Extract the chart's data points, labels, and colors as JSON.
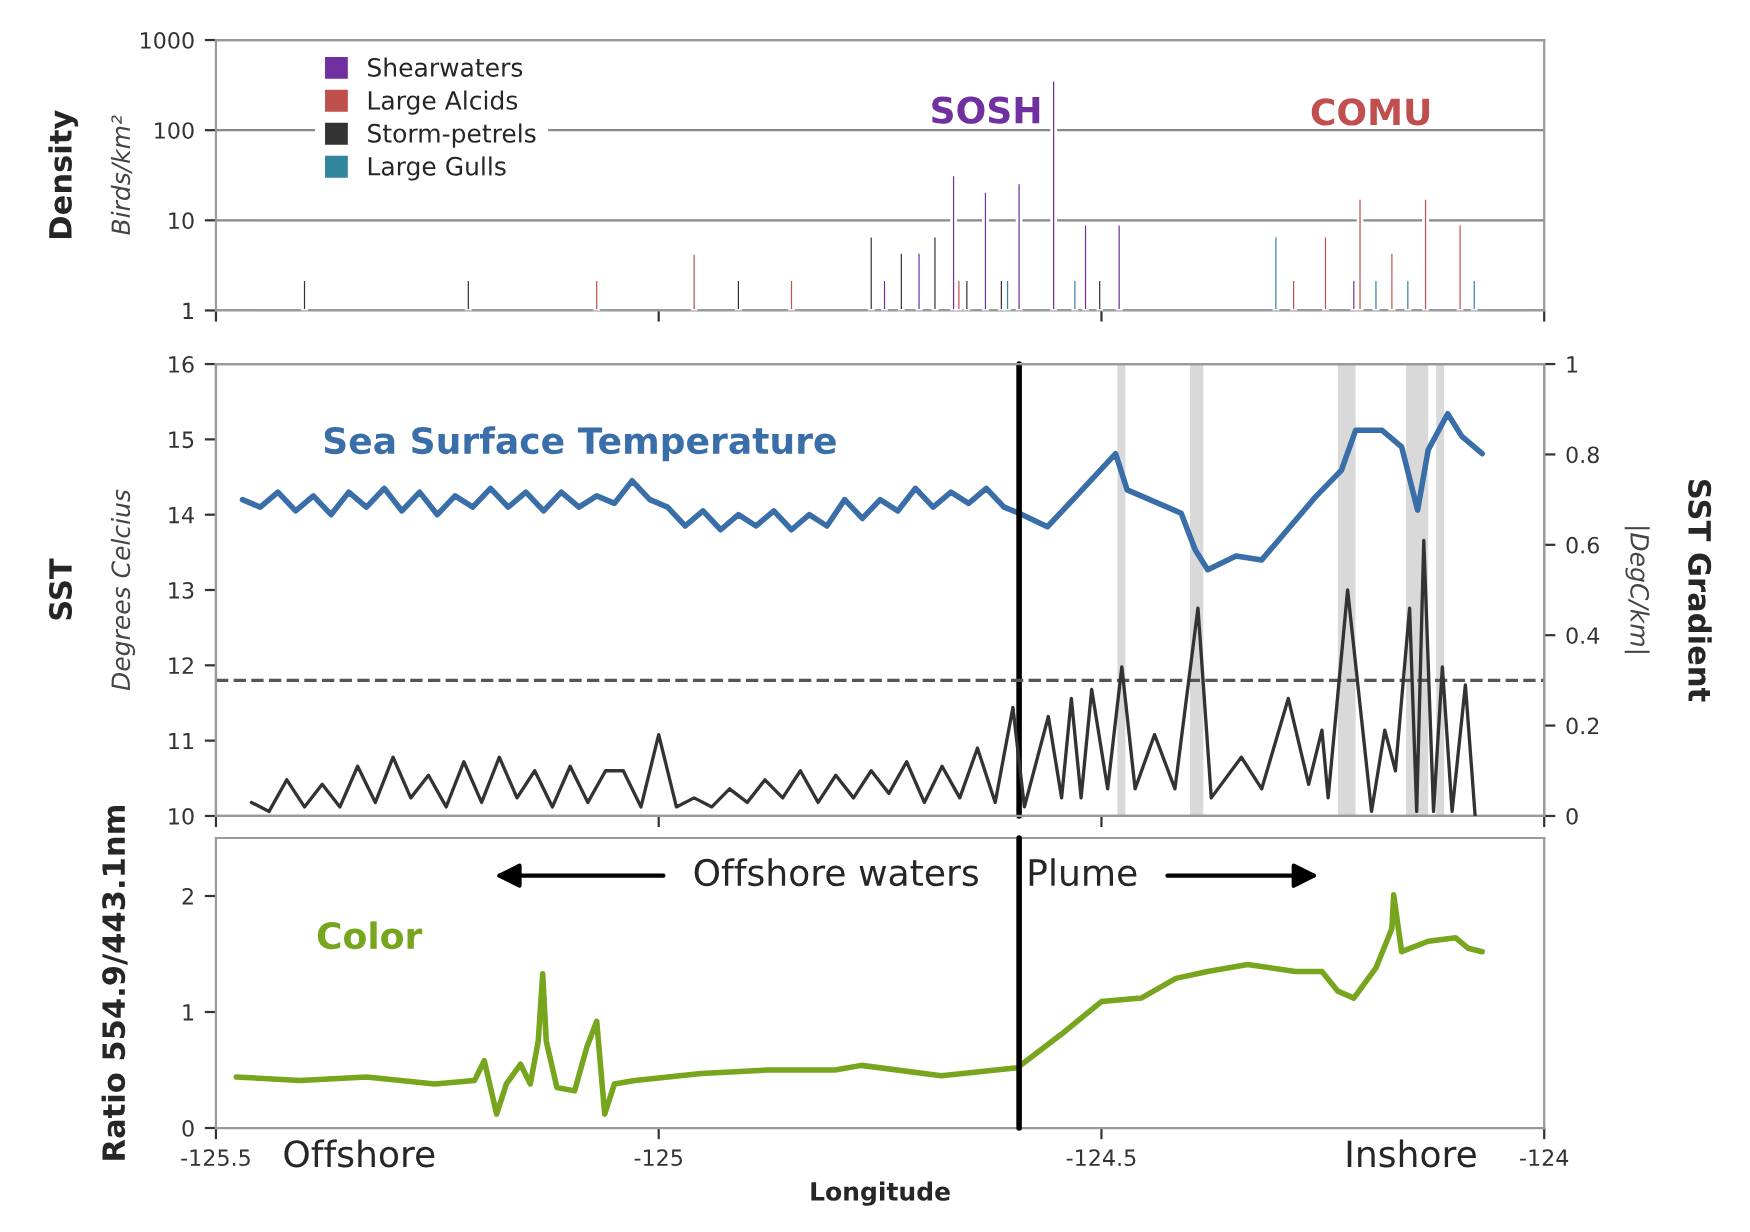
{
  "chart_data": [
    {
      "type": "bar",
      "ylabel": "Density\nBirds/km²",
      "log": "y",
      "xlim": [
        -125.5,
        -124
      ],
      "xticks": [
        {
          "value": -125.5,
          "label": null
        },
        {
          "value": -125,
          "label": null
        },
        {
          "value": -124.5,
          "label": null
        },
        {
          "value": -124,
          "label": null
        }
      ],
      "ylim": [
        1,
        1000
      ],
      "yticks": [
        1,
        10,
        100,
        1000
      ],
      "tick_labels": "y",
      "grid": "y",
      "legend": "top left",
      "series": [
        {
          "name": "Shearwaters",
          "color": "#7030a0",
          "x": [
            -124.745,
            -124.706,
            -124.667,
            -124.631,
            -124.593,
            -124.554,
            -124.518,
            -124.48,
            -124.215
          ],
          "values": [
            2.2,
            4.4,
            32,
            21,
            26,
            360,
            9.1,
            9.1,
            2.2
          ]
        },
        {
          "name": "Large Alcids",
          "color": "#c0504d",
          "x": [
            -125.07,
            -124.96,
            -124.85,
            -124.661,
            -124.283,
            -124.247,
            -124.208,
            -124.172,
            -124.134,
            -124.095
          ],
          "values": [
            2.2,
            4.3,
            2.2,
            2.2,
            2.2,
            6.7,
            17.5,
            4.4,
            17.5,
            9.1
          ]
        },
        {
          "name": "Storm-petrels",
          "color": "#333333",
          "x": [
            -125.4,
            -125.215,
            -124.91,
            -124.76,
            -124.726,
            -124.688,
            -124.652,
            -124.613,
            -124.502
          ],
          "values": [
            2.2,
            2.2,
            2.2,
            6.7,
            4.4,
            6.7,
            2.2,
            2.2,
            2.2
          ]
        },
        {
          "name": "Large Gulls",
          "color": "#31859c",
          "x": [
            -124.606,
            -124.53,
            -124.303,
            -124.19,
            -124.154,
            -124.079
          ],
          "values": [
            2.2,
            2.2,
            6.7,
            2.2,
            2.2,
            2.2
          ]
        }
      ],
      "annotations": [
        {
          "text": "SOSH",
          "x": -124.554,
          "y": 360
        },
        {
          "text": "COMU",
          "x": -124.208,
          "y": 17.5
        }
      ]
    },
    {
      "type": "line",
      "ylabel": "SST\nDegrees Celcius",
      "y2label": "SST Gradient\n|DegC/km|",
      "xlim": [
        -125.5,
        -124
      ],
      "xticks": [
        {
          "value": -125.5,
          "label": null
        },
        {
          "value": -125,
          "label": null
        },
        {
          "value": -124.5,
          "label": null
        },
        {
          "value": -124,
          "label": null
        }
      ],
      "ylim": [
        10,
        16
      ],
      "yticks": [
        10,
        11,
        12,
        13,
        14,
        15,
        16
      ],
      "y2lim": [
        0,
        1
      ],
      "y2ticks": [
        0,
        0.2,
        0.4,
        0.6,
        0.8,
        1
      ],
      "tick_labels": "y",
      "grid": false,
      "legend": false,
      "series": [
        {
          "name": "Sea Surface Temperature",
          "color": "#3a6ea8",
          "x": [
            -125.47,
            -125.45,
            -125.43,
            -125.41,
            -125.39,
            -125.37,
            -125.35,
            -125.33,
            -125.31,
            -125.29,
            -125.27,
            -125.25,
            -125.23,
            -125.21,
            -125.19,
            -125.17,
            -125.15,
            -125.13,
            -125.11,
            -125.09,
            -125.07,
            -125.05,
            -125.03,
            -125.01,
            -124.99,
            -124.97,
            -124.95,
            -124.93,
            -124.91,
            -124.89,
            -124.87,
            -124.85,
            -124.83,
            -124.81,
            -124.79,
            -124.77,
            -124.75,
            -124.73,
            -124.71,
            -124.69,
            -124.67,
            -124.65,
            -124.63,
            -124.61,
            -124.593,
            -124.561,
            -124.529,
            -124.484,
            -124.471,
            -124.41,
            -124.394,
            -124.38,
            -124.348,
            -124.319,
            -124.29,
            -124.258,
            -124.229,
            -124.213,
            -124.183,
            -124.161,
            -124.143,
            -124.131,
            -124.109,
            -124.093,
            -124.07
          ],
          "values": [
            14.2,
            14.1,
            14.3,
            14.05,
            14.25,
            14.0,
            14.3,
            14.1,
            14.35,
            14.05,
            14.3,
            14.0,
            14.25,
            14.1,
            14.35,
            14.1,
            14.3,
            14.05,
            14.3,
            14.1,
            14.25,
            14.15,
            14.45,
            14.2,
            14.1,
            13.85,
            14.05,
            13.8,
            14.0,
            13.85,
            14.05,
            13.8,
            14.0,
            13.85,
            14.2,
            13.95,
            14.2,
            14.05,
            14.35,
            14.1,
            14.3,
            14.15,
            14.35,
            14.1,
            14.02,
            13.84,
            14.24,
            14.81,
            14.33,
            14.02,
            13.53,
            13.27,
            13.45,
            13.4,
            13.8,
            14.24,
            14.59,
            15.12,
            15.12,
            14.9,
            14.06,
            14.86,
            15.34,
            15.04,
            14.81
          ]
        },
        {
          "color": "#333333",
          "axis": "y2",
          "x": [
            -125.46,
            -125.44,
            -125.42,
            -125.4,
            -125.38,
            -125.36,
            -125.34,
            -125.32,
            -125.3,
            -125.28,
            -125.26,
            -125.24,
            -125.22,
            -125.2,
            -125.18,
            -125.16,
            -125.14,
            -125.12,
            -125.1,
            -125.08,
            -125.06,
            -125.04,
            -125.02,
            -125.0,
            -124.98,
            -124.96,
            -124.94,
            -124.92,
            -124.9,
            -124.88,
            -124.86,
            -124.84,
            -124.82,
            -124.8,
            -124.78,
            -124.76,
            -124.74,
            -124.72,
            -124.7,
            -124.68,
            -124.66,
            -124.64,
            -124.62,
            -124.6,
            -124.587,
            -124.56,
            -124.545,
            -124.534,
            -124.523,
            -124.511,
            -124.493,
            -124.477,
            -124.462,
            -124.44,
            -124.417,
            -124.391,
            -124.376,
            -124.342,
            -124.319,
            -124.289,
            -124.266,
            -124.251,
            -124.244,
            -124.222,
            -124.195,
            -124.18,
            -124.168,
            -124.152,
            -124.144,
            -124.136,
            -124.125,
            -124.115,
            -124.104,
            -124.089,
            -124.078
          ],
          "values": [
            0.03,
            0.01,
            0.08,
            0.02,
            0.07,
            0.02,
            0.11,
            0.03,
            0.13,
            0.04,
            0.09,
            0.02,
            0.12,
            0.03,
            0.13,
            0.04,
            0.1,
            0.02,
            0.11,
            0.03,
            0.1,
            0.1,
            0.02,
            0.18,
            0.02,
            0.04,
            0.02,
            0.06,
            0.03,
            0.08,
            0.04,
            0.1,
            0.03,
            0.09,
            0.04,
            0.1,
            0.05,
            0.12,
            0.03,
            0.11,
            0.04,
            0.15,
            0.03,
            0.24,
            0.02,
            0.22,
            0.04,
            0.26,
            0.04,
            0.28,
            0.06,
            0.33,
            0.06,
            0.18,
            0.06,
            0.46,
            0.04,
            0.13,
            0.06,
            0.26,
            0.07,
            0.19,
            0.04,
            0.5,
            0.01,
            0.19,
            0.1,
            0.46,
            0.01,
            0.61,
            0.01,
            0.33,
            0.01,
            0.29,
            0.0
          ]
        }
      ],
      "ref_lines": [
        {
          "axis": "x",
          "value": -124.593,
          "color": "#000000",
          "line_style": "solid"
        },
        {
          "axis": "y2",
          "value": 0.3,
          "color": "#555555",
          "line_style": "dashed"
        }
      ],
      "bands": [
        {
          "axis": "x",
          "from": -124.482,
          "to": -124.473,
          "color": "#d9d9d9"
        },
        {
          "axis": "x",
          "from": -124.4,
          "to": -124.385,
          "color": "#d9d9d9"
        },
        {
          "axis": "x",
          "from": -124.233,
          "to": -124.213,
          "color": "#d9d9d9"
        },
        {
          "axis": "x",
          "from": -124.156,
          "to": -124.131,
          "color": "#d9d9d9"
        },
        {
          "axis": "x",
          "from": -124.122,
          "to": -124.113,
          "color": "#d9d9d9"
        }
      ]
    },
    {
      "type": "line",
      "ylabel": "Ratio 554.9/443.1nm",
      "xlabel": "Longitude",
      "xlim": [
        -125.5,
        -124
      ],
      "xticks": [
        -125.5,
        -125,
        -124.5,
        -124
      ],
      "ylim": [
        0,
        2.5
      ],
      "yticks": [
        0,
        1,
        2
      ],
      "grid": false,
      "legend": false,
      "series": [
        {
          "name": "Color",
          "color": "#77a51e",
          "x": [
            -125.477,
            -125.405,
            -125.33,
            -125.253,
            -125.208,
            -125.197,
            -125.183,
            -125.172,
            -125.156,
            -125.145,
            -125.136,
            -125.131,
            -125.127,
            -125.115,
            -125.095,
            -125.081,
            -125.07,
            -125.061,
            -125.05,
            -125.027,
            -124.952,
            -124.878,
            -124.801,
            -124.771,
            -124.681,
            -124.595,
            -124.545,
            -124.5,
            -124.455,
            -124.416,
            -124.38,
            -124.335,
            -124.281,
            -124.251,
            -124.233,
            -124.215,
            -124.19,
            -124.172,
            -124.17,
            -124.161,
            -124.131,
            -124.1,
            -124.086,
            -124.07
          ],
          "values": [
            0.44,
            0.41,
            0.44,
            0.38,
            0.41,
            0.58,
            0.12,
            0.38,
            0.55,
            0.38,
            0.75,
            1.33,
            0.75,
            0.35,
            0.32,
            0.7,
            0.92,
            0.12,
            0.38,
            0.41,
            0.47,
            0.5,
            0.5,
            0.54,
            0.45,
            0.52,
            0.81,
            1.09,
            1.12,
            1.29,
            1.35,
            1.41,
            1.35,
            1.35,
            1.18,
            1.12,
            1.38,
            1.72,
            2.01,
            1.52,
            1.61,
            1.64,
            1.55,
            1.52
          ]
        }
      ],
      "ref_lines": [
        {
          "axis": "x",
          "value": -124.593,
          "color": "#000000",
          "line_style": "solid"
        }
      ],
      "annotations": [
        "Offshore waters",
        "Plume",
        "Offshore",
        "Inshore"
      ]
    }
  ]
}
